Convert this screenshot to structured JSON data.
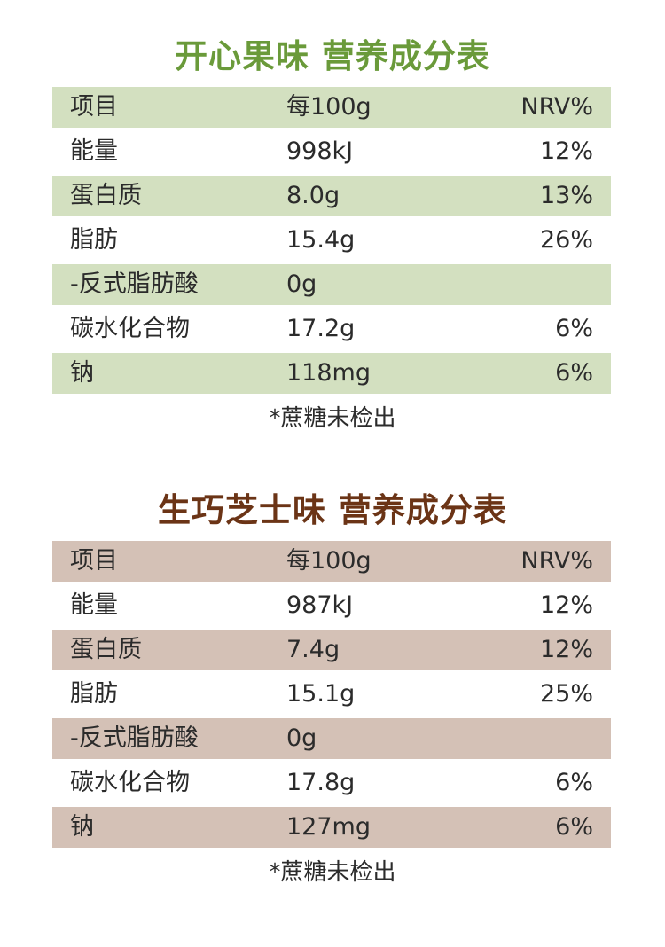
{
  "tables": [
    {
      "title": "开心果味  营养成分表",
      "header": {
        "name": "项目",
        "amount": "每100g",
        "nrv": "NRV%"
      },
      "rows": [
        {
          "name": "能量",
          "amount": "998kJ",
          "nrv": "12%"
        },
        {
          "name": "蛋白质",
          "amount": "8.0g",
          "nrv": "13%"
        },
        {
          "name": "脂肪",
          "amount": "15.4g",
          "nrv": "26%"
        },
        {
          "name": "-反式脂肪酸",
          "amount": "0g",
          "nrv": ""
        },
        {
          "name": "碳水化合物",
          "amount": "17.2g",
          "nrv": "6%"
        },
        {
          "name": "钠",
          "amount": "118mg",
          "nrv": "6%"
        }
      ],
      "note": "*蔗糖未检出",
      "accent_color": "#6a9a3a",
      "row_shade_color": "#d3e0c0"
    },
    {
      "title": "生巧芝士味  营养成分表",
      "header": {
        "name": "项目",
        "amount": "每100g",
        "nrv": "NRV%"
      },
      "rows": [
        {
          "name": "能量",
          "amount": "987kJ",
          "nrv": "12%"
        },
        {
          "name": "蛋白质",
          "amount": "7.4g",
          "nrv": "12%"
        },
        {
          "name": "脂肪",
          "amount": "15.1g",
          "nrv": "25%"
        },
        {
          "name": "-反式脂肪酸",
          "amount": "0g",
          "nrv": ""
        },
        {
          "name": "碳水化合物",
          "amount": "17.8g",
          "nrv": "6%"
        },
        {
          "name": "钠",
          "amount": "127mg",
          "nrv": "6%"
        }
      ],
      "note": "*蔗糖未检出",
      "accent_color": "#6b3416",
      "row_shade_color": "#d4c1b6"
    }
  ]
}
